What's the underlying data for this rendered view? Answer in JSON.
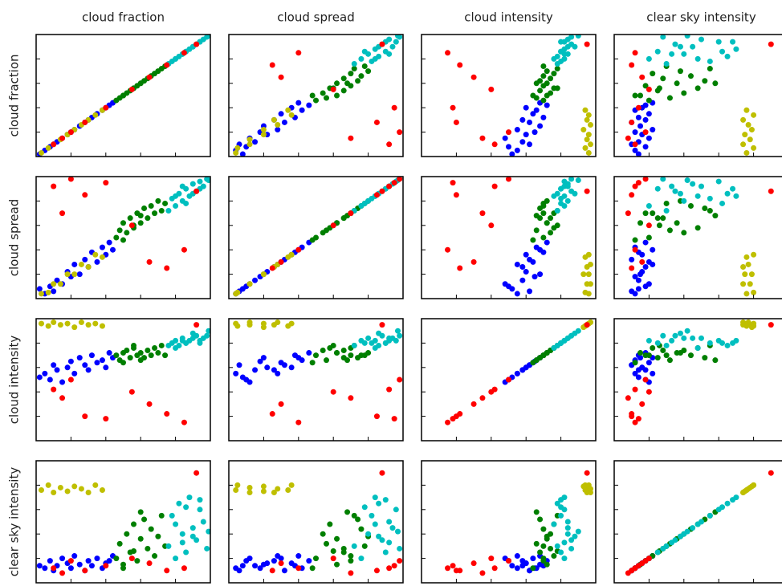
{
  "chart_data": {
    "type": "scatter-matrix",
    "variables": [
      {
        "label": "cloud fraction",
        "lim": [
          0,
          1
        ],
        "ticks": [
          0,
          0.2,
          0.4,
          0.6,
          0.8,
          1
        ]
      },
      {
        "label": "cloud spread",
        "lim": [
          0,
          1
        ],
        "ticks": [
          0,
          0.2,
          0.4,
          0.6,
          0.8,
          1
        ]
      },
      {
        "label": "cloud intensity",
        "lim": [
          0,
          1
        ],
        "ticks": [
          0,
          0.2,
          0.4,
          0.6,
          0.8,
          1
        ]
      },
      {
        "label": "clear sky intensity",
        "lim": [
          0,
          1
        ],
        "ticks": [
          0,
          0.2,
          0.4,
          0.6,
          0.8,
          1
        ]
      }
    ],
    "series": [
      {
        "color": "#0000ff",
        "values": [
          [
            0.05,
            0.04,
            0.55,
            0.12
          ],
          [
            0.08,
            0.1,
            0.5,
            0.18
          ],
          [
            0.1,
            0.06,
            0.62,
            0.1
          ],
          [
            0.12,
            0.15,
            0.58,
            0.14
          ],
          [
            0.15,
            0.12,
            0.48,
            0.2
          ],
          [
            0.18,
            0.22,
            0.6,
            0.16
          ],
          [
            0.2,
            0.18,
            0.65,
            0.12
          ],
          [
            0.22,
            0.28,
            0.55,
            0.22
          ],
          [
            0.25,
            0.2,
            0.68,
            0.15
          ],
          [
            0.28,
            0.32,
            0.62,
            0.1
          ],
          [
            0.3,
            0.26,
            0.58,
            0.18
          ],
          [
            0.32,
            0.38,
            0.7,
            0.14
          ],
          [
            0.35,
            0.3,
            0.64,
            0.2
          ],
          [
            0.38,
            0.42,
            0.66,
            0.12
          ],
          [
            0.4,
            0.36,
            0.6,
            0.16
          ],
          [
            0.42,
            0.46,
            0.72,
            0.18
          ],
          [
            0.44,
            0.4,
            0.68,
            0.22
          ],
          [
            0.02,
            0.08,
            0.52,
            0.14
          ]
        ]
      },
      {
        "color": "#007f00",
        "values": [
          [
            0.46,
            0.5,
            0.7,
            0.2
          ],
          [
            0.48,
            0.56,
            0.66,
            0.32
          ],
          [
            0.5,
            0.62,
            0.72,
            0.15
          ],
          [
            0.52,
            0.54,
            0.74,
            0.4
          ],
          [
            0.54,
            0.66,
            0.68,
            0.25
          ],
          [
            0.56,
            0.58,
            0.76,
            0.48
          ],
          [
            0.58,
            0.7,
            0.7,
            0.18
          ],
          [
            0.6,
            0.62,
            0.72,
            0.36
          ],
          [
            0.62,
            0.74,
            0.68,
            0.52
          ],
          [
            0.64,
            0.66,
            0.74,
            0.28
          ],
          [
            0.66,
            0.76,
            0.7,
            0.44
          ],
          [
            0.68,
            0.7,
            0.76,
            0.22
          ],
          [
            0.7,
            0.8,
            0.72,
            0.38
          ],
          [
            0.72,
            0.72,
            0.78,
            0.55
          ],
          [
            0.74,
            0.78,
            0.7,
            0.3
          ],
          [
            0.5,
            0.48,
            0.64,
            0.12
          ],
          [
            0.6,
            0.68,
            0.66,
            0.58
          ],
          [
            0.56,
            0.6,
            0.78,
            0.26
          ]
        ]
      },
      {
        "color": "#00bfbf",
        "values": [
          [
            0.76,
            0.72,
            0.78,
            0.3
          ],
          [
            0.78,
            0.82,
            0.8,
            0.55
          ],
          [
            0.8,
            0.76,
            0.82,
            0.2
          ],
          [
            0.82,
            0.86,
            0.78,
            0.65
          ],
          [
            0.84,
            0.8,
            0.84,
            0.4
          ],
          [
            0.86,
            0.9,
            0.8,
            0.25
          ],
          [
            0.88,
            0.84,
            0.82,
            0.7
          ],
          [
            0.9,
            0.94,
            0.84,
            0.45
          ],
          [
            0.92,
            0.88,
            0.86,
            0.35
          ],
          [
            0.94,
            0.96,
            0.82,
            0.6
          ],
          [
            0.96,
            0.92,
            0.84,
            0.5
          ],
          [
            0.98,
            0.98,
            0.86,
            0.28
          ],
          [
            0.8,
            0.84,
            0.76,
            0.48
          ],
          [
            0.86,
            0.78,
            0.8,
            0.62
          ],
          [
            0.9,
            0.86,
            0.88,
            0.38
          ],
          [
            0.94,
            0.9,
            0.8,
            0.68
          ],
          [
            0.99,
            0.97,
            0.9,
            0.42
          ],
          [
            0.84,
            0.92,
            0.82,
            0.33
          ]
        ]
      },
      {
        "color": "#bfbf00",
        "values": [
          [
            0.03,
            0.04,
            0.96,
            0.76
          ],
          [
            0.07,
            0.05,
            0.94,
            0.8
          ],
          [
            0.1,
            0.12,
            0.97,
            0.74
          ],
          [
            0.14,
            0.12,
            0.95,
            0.78
          ],
          [
            0.18,
            0.2,
            0.96,
            0.75
          ],
          [
            0.22,
            0.2,
            0.93,
            0.79
          ],
          [
            0.26,
            0.28,
            0.97,
            0.77
          ],
          [
            0.3,
            0.26,
            0.95,
            0.74
          ],
          [
            0.34,
            0.36,
            0.96,
            0.8
          ],
          [
            0.38,
            0.34,
            0.94,
            0.76
          ]
        ]
      },
      {
        "color": "#ff0000",
        "values": [
          [
            0.1,
            0.92,
            0.42,
            0.12
          ],
          [
            0.15,
            0.7,
            0.35,
            0.08
          ],
          [
            0.28,
            0.85,
            0.2,
            0.1
          ],
          [
            0.4,
            0.95,
            0.18,
            0.14
          ],
          [
            0.55,
            0.6,
            0.4,
            0.2
          ],
          [
            0.65,
            0.3,
            0.3,
            0.16
          ],
          [
            0.75,
            0.25,
            0.22,
            0.1
          ],
          [
            0.85,
            0.4,
            0.15,
            0.12
          ],
          [
            0.92,
            0.88,
            0.95,
            0.9
          ],
          [
            0.2,
            0.98,
            0.5,
            0.18
          ]
        ]
      }
    ]
  }
}
